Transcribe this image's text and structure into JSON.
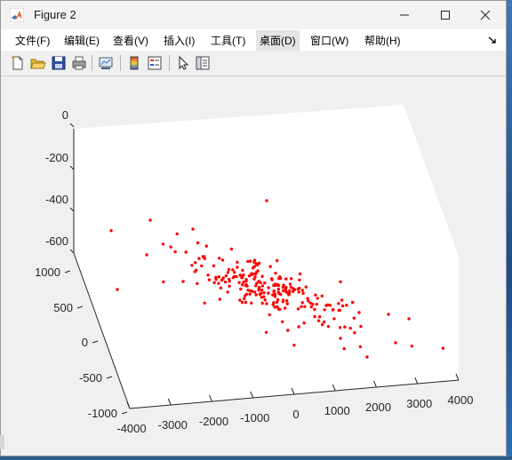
{
  "window": {
    "title": "Figure 2"
  },
  "menu": {
    "items": [
      {
        "label": "文件(F)",
        "x": 16
      },
      {
        "label": "编辑(E)",
        "x": 71
      },
      {
        "label": "查看(V)",
        "x": 126
      },
      {
        "label": "插入(I)",
        "x": 183
      },
      {
        "label": "工具(T)",
        "x": 236
      },
      {
        "label": "桌面(D)",
        "x": 291
      },
      {
        "label": "窗口(W)",
        "x": 348
      },
      {
        "label": "帮助(H)",
        "x": 409
      }
    ],
    "overflow_icon": "overflow-arrow-icon"
  },
  "toolbar": {
    "icons": [
      "new-figure-icon",
      "open-file-icon",
      "save-icon",
      "print-icon",
      "link-plot-icon",
      "colorbar-icon",
      "legend-icon",
      "edit-plot-arrow-icon",
      "property-inspector-icon"
    ]
  },
  "chart_data": {
    "type": "scatter3d",
    "marker_color": "#ff0000",
    "xticks": [
      "-4000",
      "-3000",
      "-2000",
      "-1000",
      "0",
      "1000",
      "2000",
      "3000",
      "4000"
    ],
    "yticks": [
      "-1000",
      "-500",
      "0",
      "500",
      "1000"
    ],
    "zticks": [
      "-600",
      "-400",
      "-200",
      "0"
    ]
  }
}
